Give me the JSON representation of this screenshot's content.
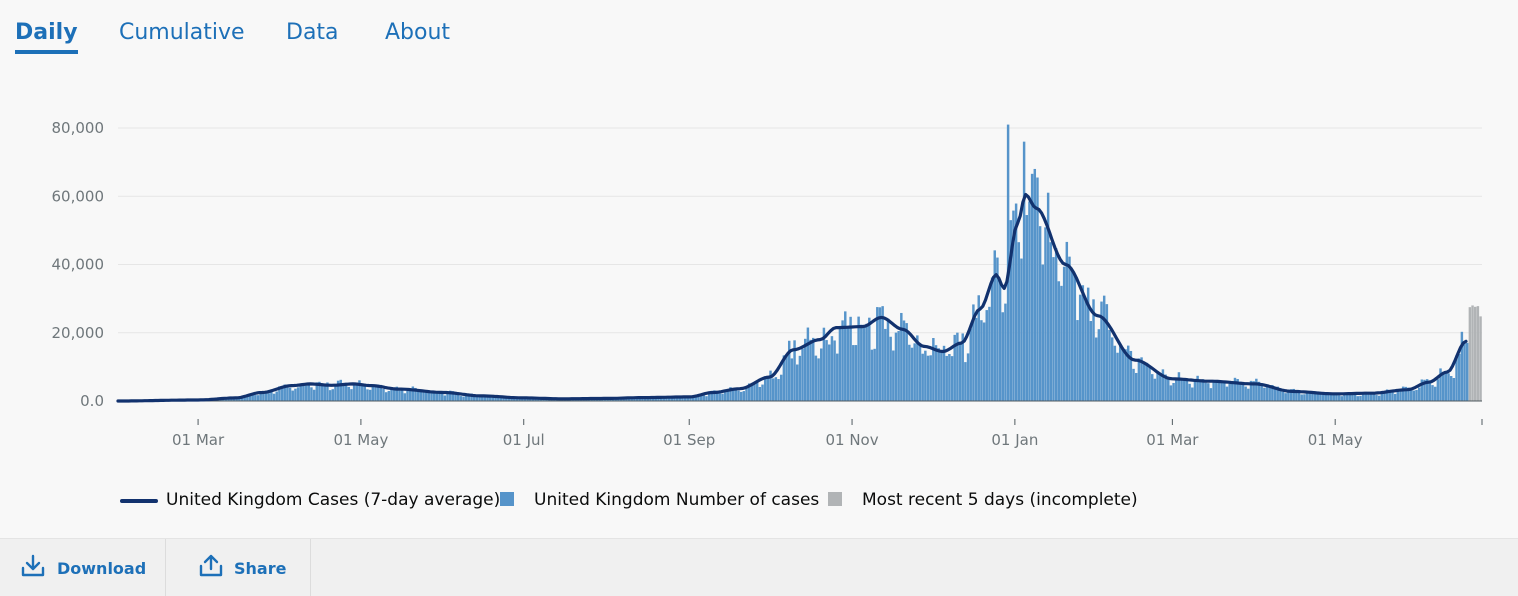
{
  "tabs": [
    {
      "label": "Daily",
      "active": true
    },
    {
      "label": "Cumulative",
      "active": false
    },
    {
      "label": "Data",
      "active": false
    },
    {
      "label": "About",
      "active": false
    }
  ],
  "colors": {
    "bar": "#5694ca",
    "incomplete": "#b1b4b6",
    "line": "#12326e",
    "link": "#1d70b8",
    "grid": "#e6e6e6"
  },
  "chart_data": {
    "type": "bar",
    "title": "",
    "xlabel": "",
    "ylabel": "",
    "ylim": [
      0,
      85000
    ],
    "yticks": [
      0,
      20000,
      40000,
      60000,
      80000
    ],
    "ytick_labels": [
      "0.0",
      "20,000",
      "40,000",
      "60,000",
      "80,000"
    ],
    "x_tick_labels": [
      "01 Mar",
      "01 May",
      "01 Jul",
      "01 Sep",
      "01 Nov",
      "01 Jan",
      "01 Mar",
      "01 May"
    ],
    "x_tick_dates": [
      "2020-03-01",
      "2020-05-01",
      "2020-07-01",
      "2020-09-01",
      "2020-11-01",
      "2021-01-01",
      "2021-03-01",
      "2021-05-01"
    ],
    "date_range": [
      "2020-01-31",
      "2021-06-24"
    ],
    "avg_anchors": [
      [
        "2020-01-31",
        0
      ],
      [
        "2020-03-01",
        300
      ],
      [
        "2020-03-15",
        900
      ],
      [
        "2020-03-25",
        2500
      ],
      [
        "2020-04-05",
        4500
      ],
      [
        "2020-04-12",
        5000
      ],
      [
        "2020-04-20",
        4600
      ],
      [
        "2020-04-28",
        5000
      ],
      [
        "2020-05-05",
        4500
      ],
      [
        "2020-05-15",
        3500
      ],
      [
        "2020-06-01",
        2500
      ],
      [
        "2020-06-15",
        1500
      ],
      [
        "2020-07-01",
        900
      ],
      [
        "2020-07-15",
        650
      ],
      [
        "2020-08-01",
        750
      ],
      [
        "2020-08-15",
        1000
      ],
      [
        "2020-09-01",
        1200
      ],
      [
        "2020-09-10",
        2500
      ],
      [
        "2020-09-20",
        3600
      ],
      [
        "2020-10-01",
        7000
      ],
      [
        "2020-10-10",
        15000
      ],
      [
        "2020-10-20",
        18000
      ],
      [
        "2020-10-26",
        21500
      ],
      [
        "2020-11-05",
        21800
      ],
      [
        "2020-11-12",
        24500
      ],
      [
        "2020-11-20",
        21000
      ],
      [
        "2020-11-28",
        16000
      ],
      [
        "2020-12-05",
        14500
      ],
      [
        "2020-12-12",
        17000
      ],
      [
        "2020-12-19",
        27000
      ],
      [
        "2020-12-25",
        37000
      ],
      [
        "2020-12-28",
        33000
      ],
      [
        "2021-01-02",
        52000
      ],
      [
        "2021-01-05",
        60500
      ],
      [
        "2021-01-09",
        56500
      ],
      [
        "2021-01-20",
        40000
      ],
      [
        "2021-02-01",
        25000
      ],
      [
        "2021-02-15",
        12000
      ],
      [
        "2021-03-01",
        6500
      ],
      [
        "2021-03-15",
        5800
      ],
      [
        "2021-04-01",
        5000
      ],
      [
        "2021-04-15",
        2800
      ],
      [
        "2021-05-01",
        2100
      ],
      [
        "2021-05-15",
        2300
      ],
      [
        "2021-05-28",
        3300
      ],
      [
        "2021-06-05",
        5500
      ],
      [
        "2021-06-12",
        8500
      ],
      [
        "2021-06-19",
        17500
      ]
    ],
    "peak_values": [
      [
        "2020-12-29",
        81000
      ],
      [
        "2021-01-04",
        76000
      ],
      [
        "2021-01-08",
        68000
      ],
      [
        "2020-12-30",
        53000
      ]
    ],
    "series": [
      {
        "name": "United Kingdom Number of cases",
        "kind": "bar",
        "color": "#5694ca"
      },
      {
        "name": "United Kingdom Cases (7-day average)",
        "kind": "line",
        "color": "#12326e"
      },
      {
        "name": "Most recent 5 days (incomplete)",
        "kind": "bar",
        "color": "#b1b4b6",
        "values": [
          27500,
          28000,
          27600,
          27800,
          24800
        ]
      }
    ]
  },
  "legend": {
    "avg": "United Kingdom Cases (7-day average)",
    "cases": "United Kingdom Number of cases",
    "incomplete": "Most recent 5 days (incomplete)"
  },
  "toolbar": {
    "download": "Download",
    "share": "Share"
  }
}
